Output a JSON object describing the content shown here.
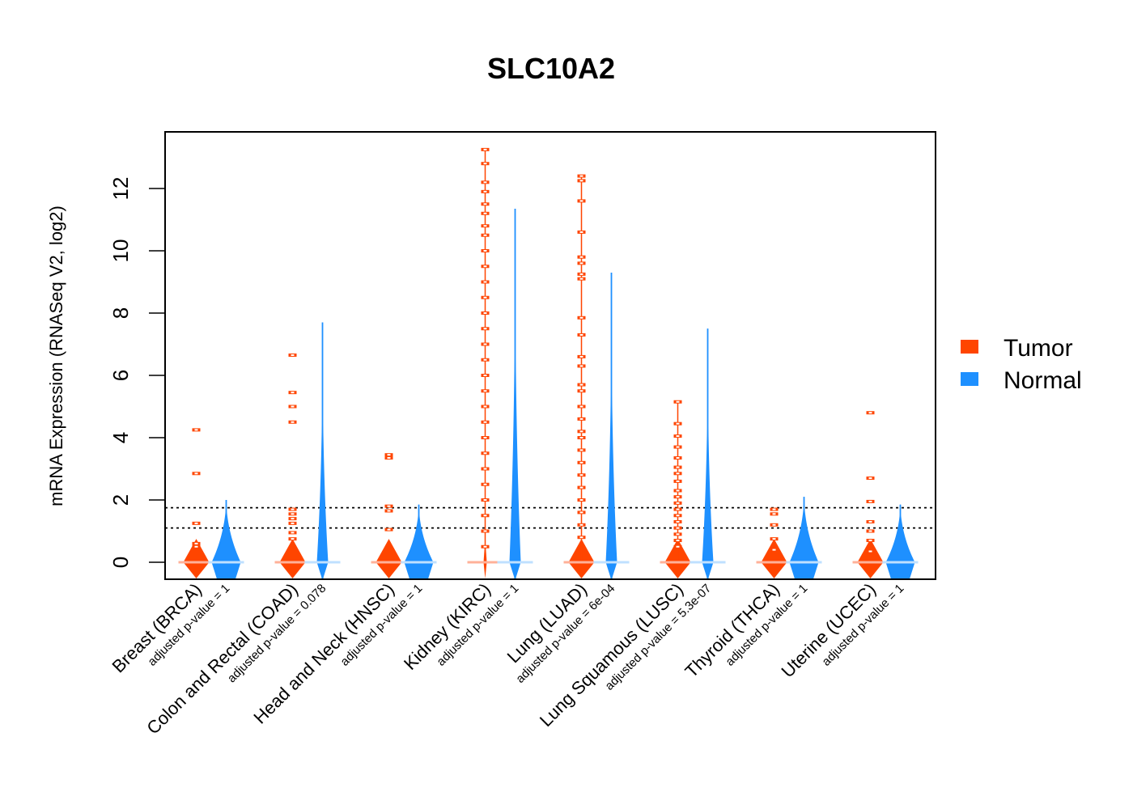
{
  "chart_data": {
    "type": "violin",
    "title": "SLC10A2",
    "xlabel": "",
    "ylabel": "mRNA Expression (RNASeq V2, log2)",
    "ylim": [
      -0.55,
      13.8
    ],
    "yticks": [
      0,
      2,
      4,
      6,
      8,
      10,
      12
    ],
    "grid": false,
    "reference_lines": [
      1.75,
      1.1
    ],
    "legend": {
      "position": "right",
      "entries": [
        {
          "name": "Tumor",
          "color": "#FF4500"
        },
        {
          "name": "Normal",
          "color": "#1E90FF"
        }
      ]
    },
    "categories": [
      {
        "label": "Breast (BRCA)",
        "pvalue_text": "adjusted p-value = 1"
      },
      {
        "label": "Colon and Rectal (COAD)",
        "pvalue_text": "adjusted p-value = 0.078"
      },
      {
        "label": "Head and Neck (HNSC)",
        "pvalue_text": "adjusted p-value = 1"
      },
      {
        "label": "Kidney (KIRC)",
        "pvalue_text": "adjusted p-value = 1"
      },
      {
        "label": "Lung (LUAD)",
        "pvalue_text": "adjusted p-value = 6e-04"
      },
      {
        "label": "Lung Squamous (LUSC)",
        "pvalue_text": "adjusted p-value = 5.3e-07"
      },
      {
        "label": "Thyroid (THCA)",
        "pvalue_text": "adjusted p-value = 1"
      },
      {
        "label": "Uterine (UCEC)",
        "pvalue_text": "adjusted p-value = 1"
      }
    ],
    "series": [
      {
        "name": "Tumor",
        "color": "#FF4500",
        "groups": [
          {
            "median": 0,
            "max": 4.3,
            "outliers": [
              4.25,
              2.85,
              1.25,
              0.6,
              0.5
            ]
          },
          {
            "median": 0,
            "max": 6.7,
            "outliers": [
              6.65,
              5.45,
              5.0,
              4.5,
              1.7,
              1.55,
              1.4,
              1.25,
              0.95,
              0.75
            ]
          },
          {
            "median": 0,
            "max": 3.45,
            "outliers": [
              3.45,
              3.35,
              1.8,
              1.65,
              1.05
            ]
          },
          {
            "median": 0,
            "max": 13.3,
            "outliers": [
              13.25,
              12.8,
              12.2,
              11.9,
              11.5,
              11.2,
              10.8,
              10.5,
              10.0,
              9.5,
              9.0,
              8.5,
              8.0,
              7.5,
              7.0,
              6.5,
              6.0,
              5.5,
              5.0,
              4.5,
              4.0,
              3.5,
              3.0,
              2.5,
              2.0,
              1.5,
              1.0,
              0.5
            ]
          },
          {
            "median": 0,
            "max": 12.4,
            "outliers": [
              12.4,
              12.25,
              11.6,
              10.6,
              9.8,
              9.6,
              9.25,
              9.1,
              7.85,
              7.3,
              6.6,
              6.3,
              5.7,
              5.5,
              5.0,
              4.6,
              4.2,
              4.0,
              3.6,
              3.2,
              2.8,
              2.4,
              2.0,
              1.6,
              1.2,
              0.8
            ]
          },
          {
            "median": 0,
            "max": 5.15,
            "outliers": [
              5.15,
              4.45,
              4.05,
              3.7,
              3.35,
              3.05,
              2.85,
              2.6,
              2.3,
              2.1,
              1.9,
              1.7,
              1.5,
              1.3,
              1.1,
              0.9,
              0.7,
              0.5
            ]
          },
          {
            "median": 0,
            "max": 1.7,
            "outliers": [
              1.7,
              1.55,
              1.2,
              0.75,
              0.4
            ]
          },
          {
            "median": 0,
            "max": 4.8,
            "outliers": [
              4.8,
              2.7,
              1.95,
              1.3,
              1.0,
              0.7,
              0.35
            ]
          }
        ]
      },
      {
        "name": "Normal",
        "color": "#1E90FF",
        "groups": [
          {
            "median": 0,
            "max": 2.0
          },
          {
            "median": 0,
            "max": 7.7
          },
          {
            "median": 0,
            "max": 1.85
          },
          {
            "median": 0,
            "max": 11.35
          },
          {
            "median": 0,
            "max": 9.3
          },
          {
            "median": 0,
            "max": 7.5
          },
          {
            "median": 0,
            "max": 2.1
          },
          {
            "median": 0,
            "max": 1.85
          }
        ]
      }
    ]
  }
}
